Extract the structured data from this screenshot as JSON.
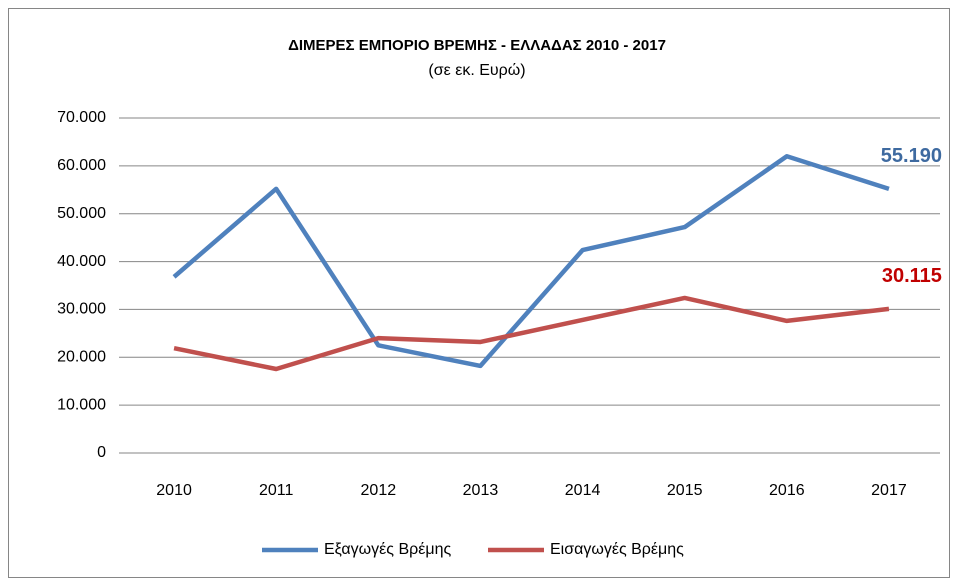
{
  "chart_data": {
    "type": "line",
    "title": "ΔΙΜΕΡΕΣ ΕΜΠΟΡΙΟ ΒΡΕΜΗΣ - ΕΛΛΑΔΑΣ 2010 - 2017",
    "subtitle": "(σε εκ. Ευρώ)",
    "categories": [
      "2010",
      "2011",
      "2012",
      "2013",
      "2014",
      "2015",
      "2016",
      "2017"
    ],
    "series": [
      {
        "name": "Εξαγωγές Βρέμης",
        "color": "#4f81bd",
        "label_color": "#3e6aa0",
        "values": [
          36800,
          55200,
          22500,
          18200,
          42400,
          47200,
          62000,
          55190
        ],
        "value_labels": [
          null,
          null,
          null,
          null,
          null,
          null,
          null,
          "55.190"
        ]
      },
      {
        "name": "Εισαγωγές Βρέμης",
        "color": "#c0504d",
        "label_color": "#c00000",
        "values": [
          21900,
          17550,
          24000,
          23200,
          27800,
          32400,
          27600,
          30115
        ],
        "value_labels": [
          null,
          null,
          null,
          null,
          null,
          null,
          null,
          "30.115"
        ]
      }
    ],
    "ylim": [
      0,
      70000
    ],
    "yticks": [
      0,
      {
        "value": 10000,
        "label": "10.000"
      },
      {
        "value": 20000,
        "label": "20.000"
      },
      {
        "value": 30000,
        "label": "30.000"
      },
      {
        "value": 40000,
        "label": "40.000"
      },
      {
        "value": 50000,
        "label": "50.000"
      },
      {
        "value": 60000,
        "label": "60.000"
      },
      {
        "value": 70000,
        "label": "70.000"
      }
    ],
    "grid": true,
    "legend": "bottom"
  }
}
